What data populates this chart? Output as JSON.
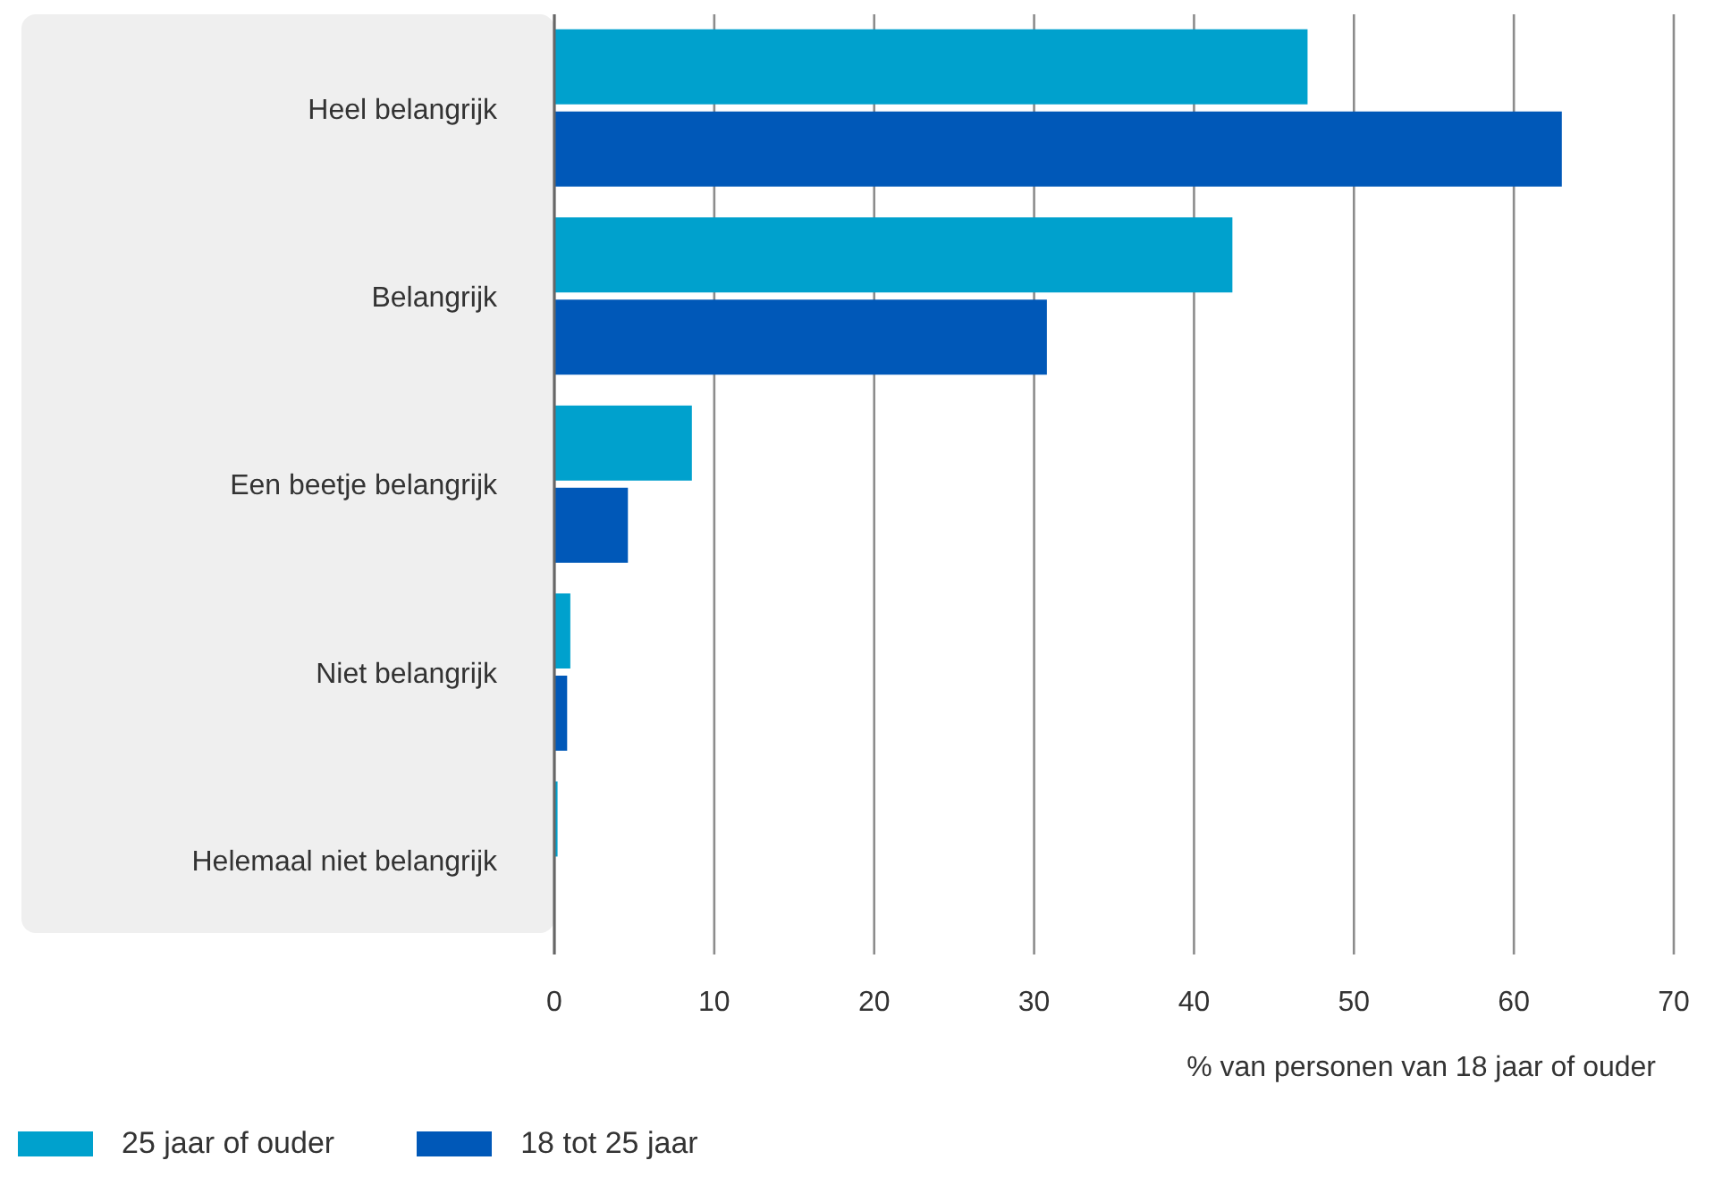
{
  "chart_data": {
    "type": "bar",
    "orientation": "horizontal",
    "xlabel": "% van personen van 18 jaar of ouder",
    "categories": [
      "Heel belangrijk",
      "Belangrijk",
      "Een beetje belangrijk",
      "Niet belangrijk",
      "Helemaal niet belangrijk"
    ],
    "series": [
      {
        "name": "25 jaar of ouder",
        "color": "#00a1cd",
        "values": [
          47.1,
          42.4,
          8.6,
          1.0,
          0.2
        ]
      },
      {
        "name": "18 tot 25 jaar",
        "color": "#0058b8",
        "values": [
          63.0,
          30.8,
          4.6,
          0.8,
          0
        ]
      }
    ],
    "xlim": [
      0,
      70
    ],
    "xticks": [
      0,
      10,
      20,
      30,
      40,
      50,
      60,
      70
    ],
    "grid": "x",
    "legend": "bottom left"
  }
}
